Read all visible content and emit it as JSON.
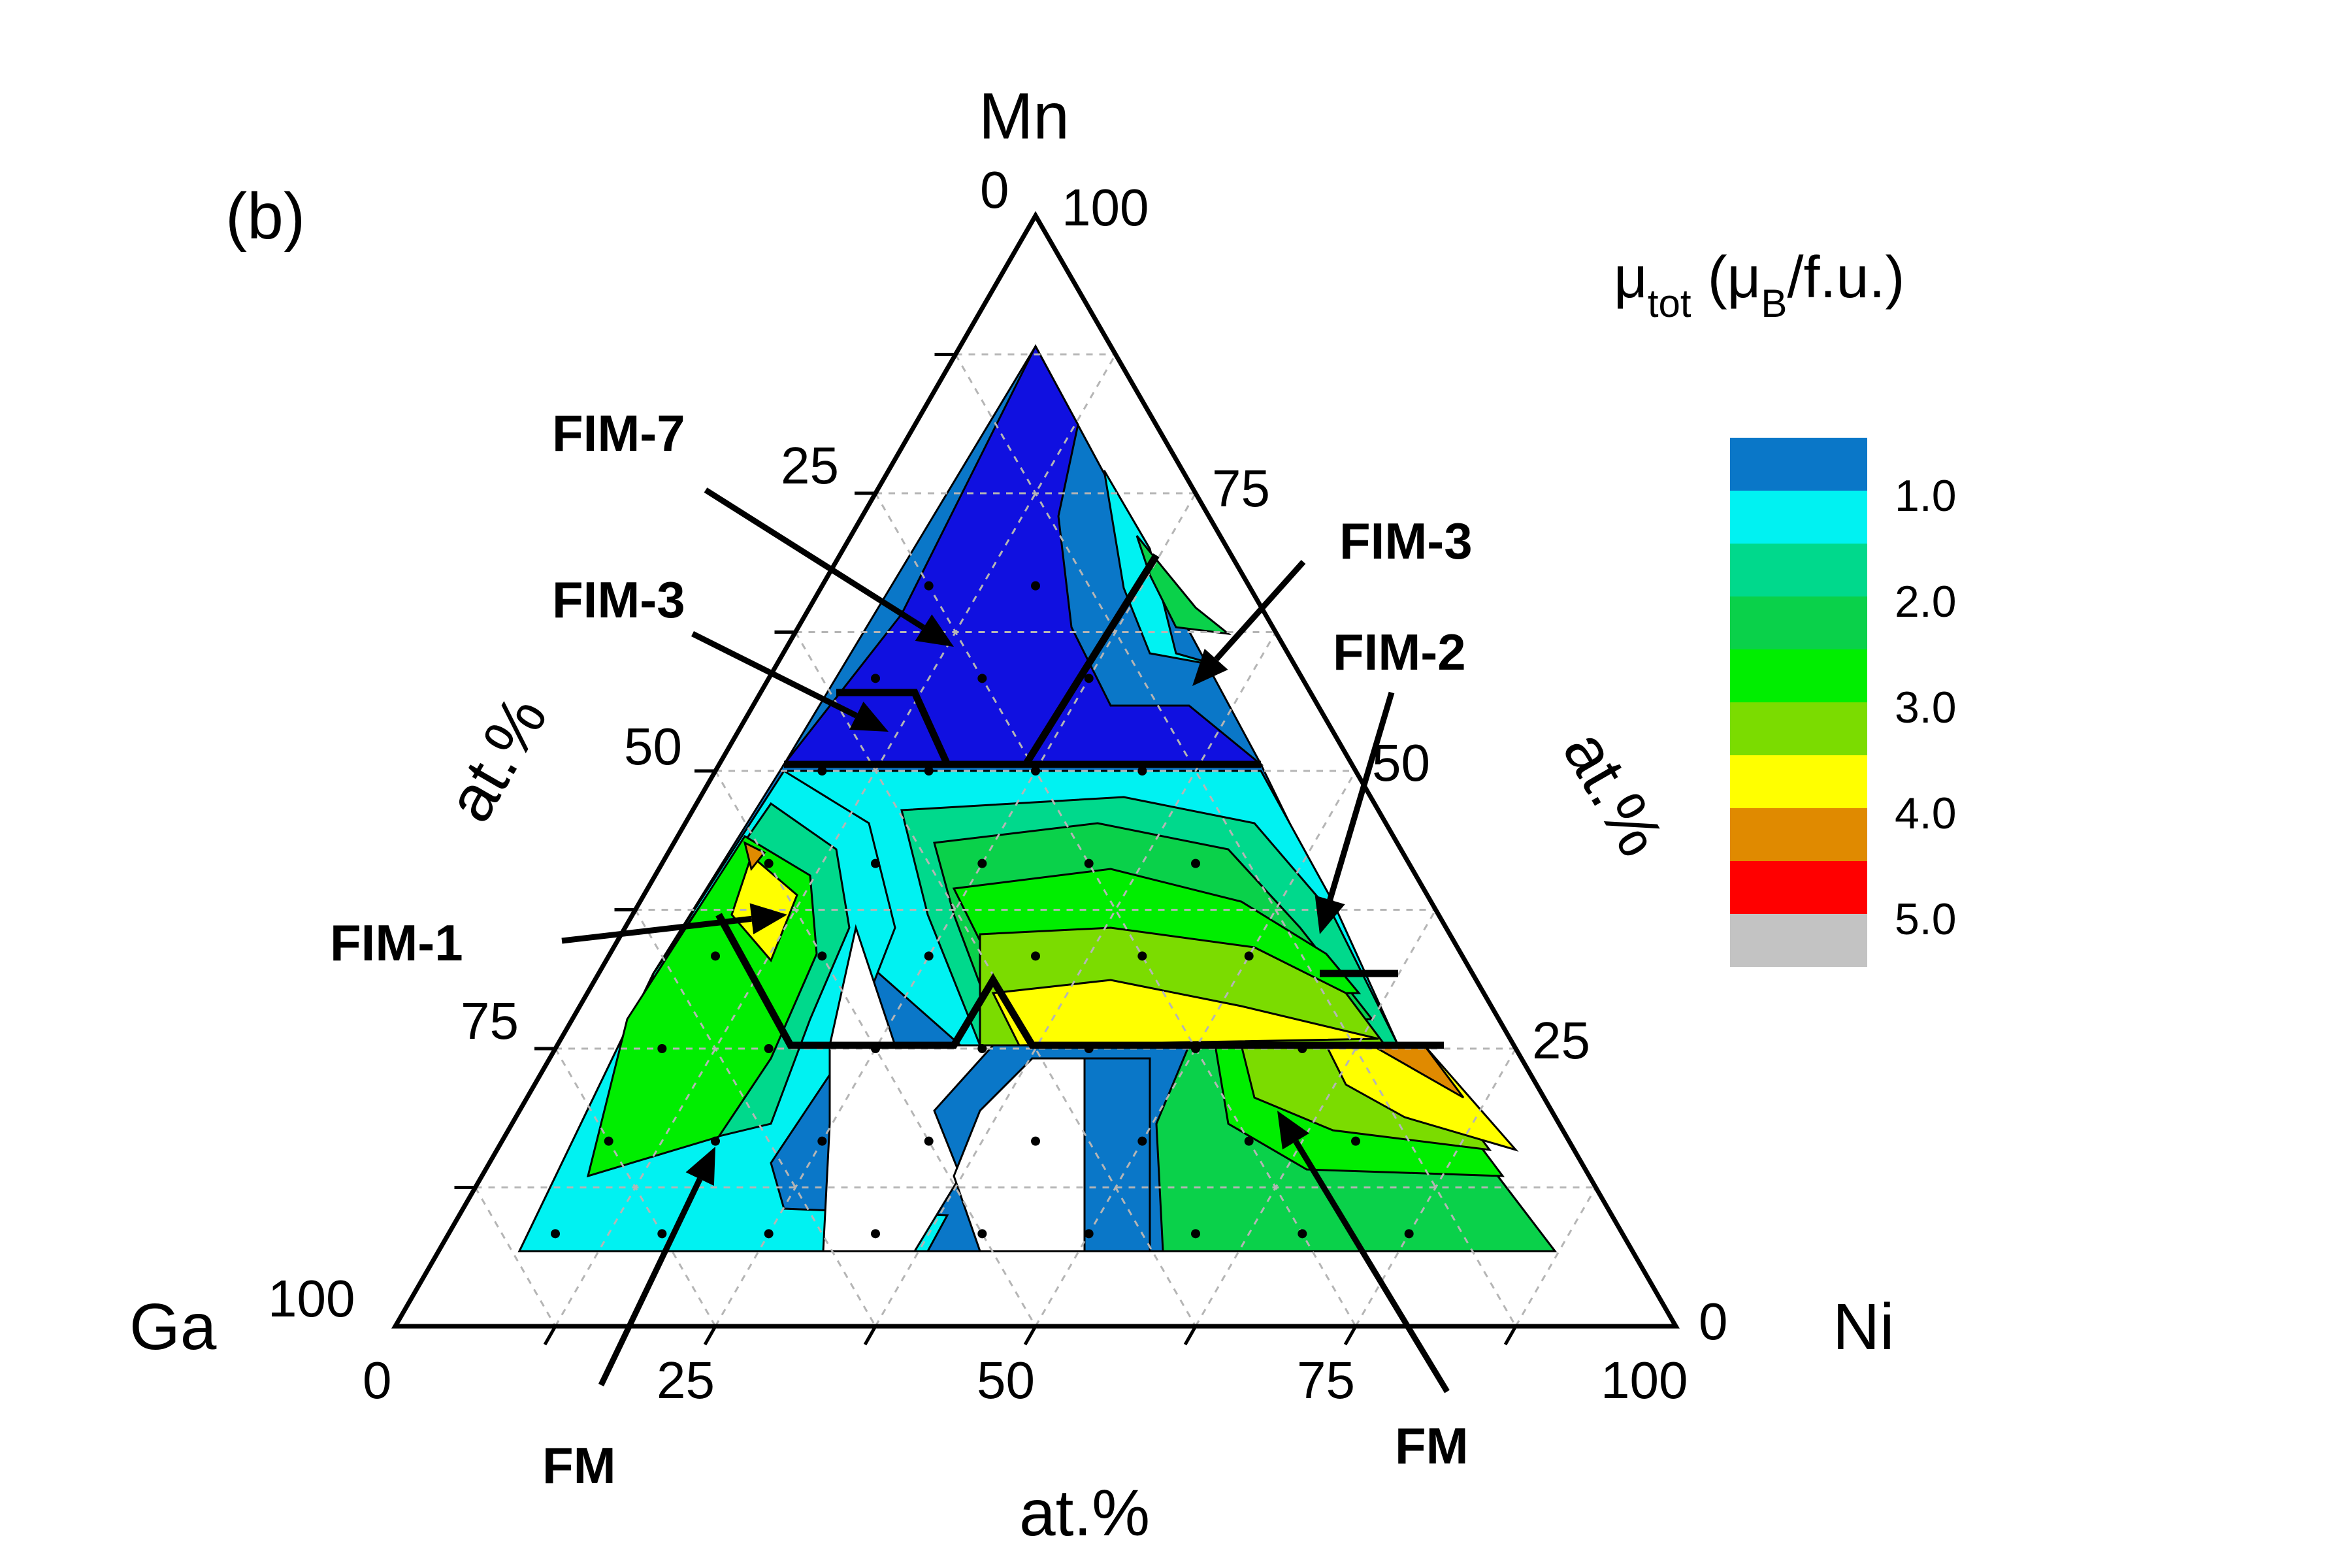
{
  "panel_label": "(b)",
  "vertices": {
    "top": "Mn",
    "left": "Ga",
    "right": "Ni"
  },
  "axis_unit_labels": {
    "left": "at.%",
    "right": "at.%",
    "bottom": "at.%"
  },
  "ticks": {
    "mn_left": [
      "0",
      "25",
      "50",
      "75",
      "100"
    ],
    "ni_right": [
      "100",
      "75",
      "50",
      "25",
      "0"
    ],
    "bottom": [
      "0",
      "25",
      "50",
      "75",
      "100"
    ]
  },
  "phase_labels": [
    "FIM-7",
    "FIM-3",
    "FIM-1",
    "FM",
    "FIM-3",
    "FIM-2",
    "FM"
  ],
  "legend": {
    "title_mu": "μ",
    "title_sub": "tot",
    "title_mid": " (μ",
    "title_sub2": "B",
    "title_end": "/f.u.)",
    "tick_labels": [
      "1.0",
      "2.0",
      "3.0",
      "4.0",
      "5.0"
    ],
    "colors": [
      "#0a77c8",
      "#00f2f2",
      "#00d98c",
      "#0ad14a",
      "#00ee00",
      "#7bdc00",
      "#ffff00",
      "#e08a00",
      "#ff0000",
      "#c3c3c3"
    ]
  },
  "chart_data": {
    "type": "ternary_contour",
    "components": [
      "Mn",
      "Ni",
      "Ga"
    ],
    "unit": "at.%",
    "quantity": "μtot (μB/f.u.)",
    "legend_levels": [
      1.0,
      2.0,
      3.0,
      4.0,
      5.0
    ],
    "phase_regions": [
      {
        "label": "FIM-7",
        "Mn": 65,
        "Ni": 20,
        "Ga": 15
      },
      {
        "label": "FIM-3",
        "Mn": 55,
        "Ni": 12,
        "Ga": 33
      },
      {
        "label": "FIM-1",
        "Mn": 40,
        "Ni": 14,
        "Ga": 46
      },
      {
        "label": "FM",
        "Mn": 12,
        "Ni": 27,
        "Ga": 61
      },
      {
        "label": "FIM-3",
        "Mn": 62,
        "Ni": 35,
        "Ga": 3
      },
      {
        "label": "FIM-2",
        "Mn": 35,
        "Ni": 55,
        "Ga": 10
      },
      {
        "label": "FM",
        "Mn": 20,
        "Ni": 60,
        "Ga": 20
      }
    ]
  }
}
